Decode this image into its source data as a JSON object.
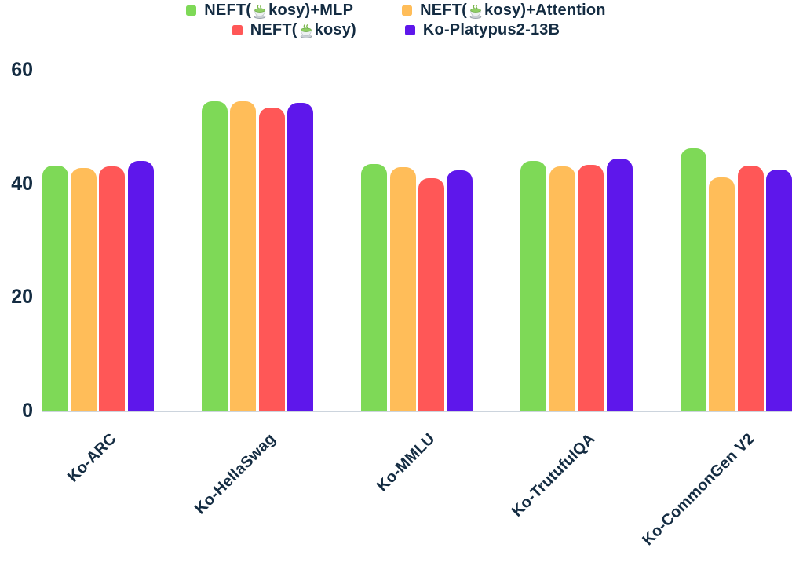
{
  "legend": {
    "rows": [
      [
        0,
        1
      ],
      [
        2,
        3
      ]
    ],
    "items": [
      {
        "label": "NEFT(🍵kosy)+MLP",
        "pre": "NEFT(",
        "emoji": "🍵",
        "post": "kosy)+MLP"
      },
      {
        "label": "NEFT(🍵kosy)+Attention",
        "pre": "NEFT(",
        "emoji": "🍵",
        "post": "kosy)+Attention"
      },
      {
        "label": "NEFT(🍵kosy)",
        "pre": "NEFT(",
        "emoji": "🍵",
        "post": "kosy)"
      },
      {
        "label": "Ko-Platypus2-13B",
        "pre": "Ko-Platypus2-13B",
        "emoji": "",
        "post": ""
      }
    ]
  },
  "chart_data": {
    "type": "bar",
    "title": "",
    "xlabel": "",
    "ylabel": "",
    "categories": [
      "Ko-ARC",
      "Ko-HellaSwag",
      "Ko-MMLU",
      "Ko-TrutufulQA",
      "Ko-CommonGen V2"
    ],
    "series": [
      {
        "name": "NEFT(🍵kosy)+MLP",
        "color": "#7ED957",
        "values": [
          43.3,
          54.6,
          43.5,
          44.1,
          46.3
        ]
      },
      {
        "name": "NEFT(🍵kosy)+Attention",
        "color": "#FFBD59",
        "values": [
          42.8,
          54.6,
          43.0,
          43.2,
          41.2
        ]
      },
      {
        "name": "NEFT(🍵kosy)",
        "color": "#FF5757",
        "values": [
          43.1,
          53.5,
          41.1,
          43.4,
          43.3
        ]
      },
      {
        "name": "Ko-Platypus2-13B",
        "color": "#5E17EB",
        "values": [
          44.1,
          54.4,
          42.4,
          44.5,
          42.6
        ]
      }
    ],
    "yticks": [
      0,
      20,
      40,
      60
    ],
    "ylim": [
      0,
      60
    ],
    "grid": true,
    "legend_position": "top",
    "text_color": "#142c42",
    "gridline_color": "#d9dfe6"
  }
}
